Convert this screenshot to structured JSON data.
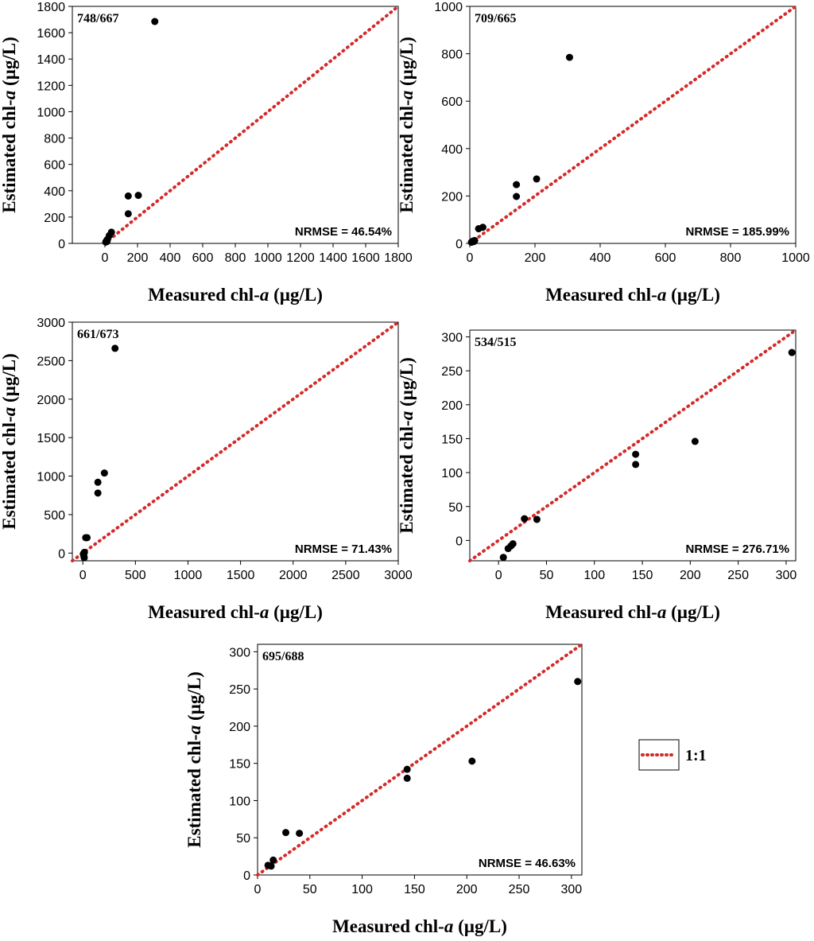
{
  "colors": {
    "one_to_one": "#d42a2a",
    "points": "#000000",
    "axes": "#000000"
  },
  "legend": {
    "label": "1:1"
  },
  "chart_data": [
    {
      "type": "scatter",
      "panel_label": "748/667",
      "metric": "NRMSE = 46.54%",
      "xlabel": {
        "prefix": "Measured chl-",
        "italic": "a",
        "suffix": " (µg/L)"
      },
      "ylabel": {
        "prefix": "Estimated chl-",
        "italic": "a",
        "suffix": " (µg/L)"
      },
      "xlim": [
        -200,
        1800
      ],
      "ylim": [
        0,
        1800
      ],
      "xticks": [
        0,
        200,
        400,
        600,
        800,
        1000,
        1200,
        1400,
        1600,
        1800
      ],
      "yticks": [
        0,
        200,
        400,
        600,
        800,
        1000,
        1200,
        1400,
        1600,
        1800
      ],
      "x": [
        5,
        10,
        13,
        15,
        27,
        40,
        143,
        143,
        205,
        306
      ],
      "y": [
        10,
        20,
        15,
        30,
        60,
        85,
        360,
        225,
        365,
        1685
      ]
    },
    {
      "type": "scatter",
      "panel_label": "709/665",
      "metric": "NRMSE = 185.99%",
      "xlabel": {
        "prefix": "Measured chl-",
        "italic": "a",
        "suffix": " (µg/L)"
      },
      "ylabel": {
        "prefix": "Estimated chl-",
        "italic": "a",
        "suffix": " (µg/L)"
      },
      "xlim": [
        0,
        1000
      ],
      "ylim": [
        0,
        1000
      ],
      "xticks": [
        0,
        200,
        400,
        600,
        800,
        1000
      ],
      "yticks": [
        0,
        200,
        400,
        600,
        800,
        1000
      ],
      "x": [
        5,
        10,
        13,
        15,
        27,
        40,
        143,
        143,
        205,
        306
      ],
      "y": [
        5,
        10,
        8,
        12,
        62,
        68,
        248,
        198,
        272,
        785
      ]
    },
    {
      "type": "scatter",
      "panel_label": "661/673",
      "metric": "NRMSE = 71.43%",
      "xlabel": {
        "prefix": "Measured chl-",
        "italic": "a",
        "suffix": " (µg/L)"
      },
      "ylabel": {
        "prefix": "Estimated chl-",
        "italic": "a",
        "suffix": " (µg/L)"
      },
      "xlim": [
        -100,
        3000
      ],
      "ylim": [
        -100,
        3000
      ],
      "xticks": [
        0,
        500,
        1000,
        1500,
        2000,
        2500,
        3000
      ],
      "yticks": [
        0,
        500,
        1000,
        1500,
        2000,
        2500,
        3000
      ],
      "x": [
        5,
        10,
        13,
        15,
        27,
        40,
        143,
        143,
        205,
        306
      ],
      "y": [
        -10,
        -40,
        -60,
        10,
        200,
        200,
        920,
        780,
        1040,
        2660
      ]
    },
    {
      "type": "scatter",
      "panel_label": "534/515",
      "metric": "NRMSE = 276.71%",
      "xlabel": {
        "prefix": "Measured chl-",
        "italic": "a",
        "suffix": " (µg/L)"
      },
      "ylabel": {
        "prefix": "Estimated chl-",
        "italic": "a",
        "suffix": " (µg/L)"
      },
      "xlim": [
        -30,
        310
      ],
      "ylim": [
        -30,
        310
      ],
      "xticks": [
        0,
        50,
        100,
        150,
        200,
        250,
        300
      ],
      "yticks": [
        0,
        50,
        100,
        150,
        200,
        250,
        300
      ],
      "x": [
        5,
        10,
        13,
        15,
        27,
        40,
        143,
        143,
        205,
        306
      ],
      "y": [
        -25,
        -12,
        -8,
        -5,
        32,
        31,
        127,
        112,
        146,
        277
      ]
    },
    {
      "type": "scatter",
      "panel_label": "695/688",
      "metric": "NRMSE = 46.63%",
      "xlabel": {
        "prefix": "Measured chl-",
        "italic": "a",
        "suffix": " (µg/L)"
      },
      "ylabel": {
        "prefix": "Estimated chl-",
        "italic": "a",
        "suffix": " (µg/L)"
      },
      "xlim": [
        0,
        310
      ],
      "ylim": [
        0,
        310
      ],
      "xticks": [
        0,
        50,
        100,
        150,
        200,
        250,
        300
      ],
      "yticks": [
        0,
        50,
        100,
        150,
        200,
        250,
        300
      ],
      "x": [
        10,
        13,
        15,
        27,
        40,
        143,
        143,
        205,
        306
      ],
      "y": [
        13,
        12,
        20,
        57,
        56,
        142,
        130,
        153,
        260
      ]
    }
  ]
}
